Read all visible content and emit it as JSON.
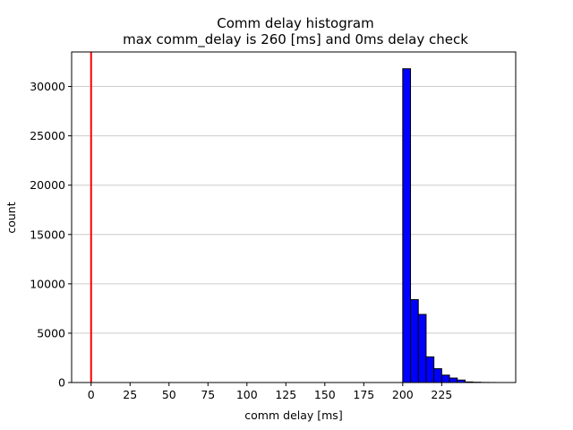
{
  "chart_data": {
    "type": "bar",
    "title": "Comm delay histogram",
    "subtitle": "max comm_delay is 260 [ms] and 0ms delay check",
    "xlabel": "comm delay [ms]",
    "ylabel": "count",
    "xlim": [
      -12.5,
      272.5
    ],
    "ylim": [
      0,
      33500
    ],
    "x_ticks": [
      0,
      25,
      50,
      75,
      100,
      125,
      150,
      175,
      200,
      225
    ],
    "y_ticks": [
      0,
      5000,
      10000,
      15000,
      20000,
      25000,
      30000
    ],
    "grid": "horizontal",
    "bin_width": 5,
    "bins": [
      {
        "x0": 200,
        "x1": 205,
        "count": 31800
      },
      {
        "x0": 205,
        "x1": 210,
        "count": 8400
      },
      {
        "x0": 210,
        "x1": 215,
        "count": 6900
      },
      {
        "x0": 215,
        "x1": 220,
        "count": 2600
      },
      {
        "x0": 220,
        "x1": 225,
        "count": 1400
      },
      {
        "x0": 225,
        "x1": 230,
        "count": 750
      },
      {
        "x0": 230,
        "x1": 235,
        "count": 450
      },
      {
        "x0": 235,
        "x1": 240,
        "count": 250
      },
      {
        "x0": 240,
        "x1": 245,
        "count": 60
      },
      {
        "x0": 245,
        "x1": 250,
        "count": 30
      },
      {
        "x0": 250,
        "x1": 255,
        "count": 10
      },
      {
        "x0": 255,
        "x1": 260,
        "count": 5
      }
    ],
    "reference_line": {
      "x": 0,
      "color": "#ff0000"
    },
    "bar_color": "#0000ff",
    "bar_edge_color": "#000000"
  }
}
